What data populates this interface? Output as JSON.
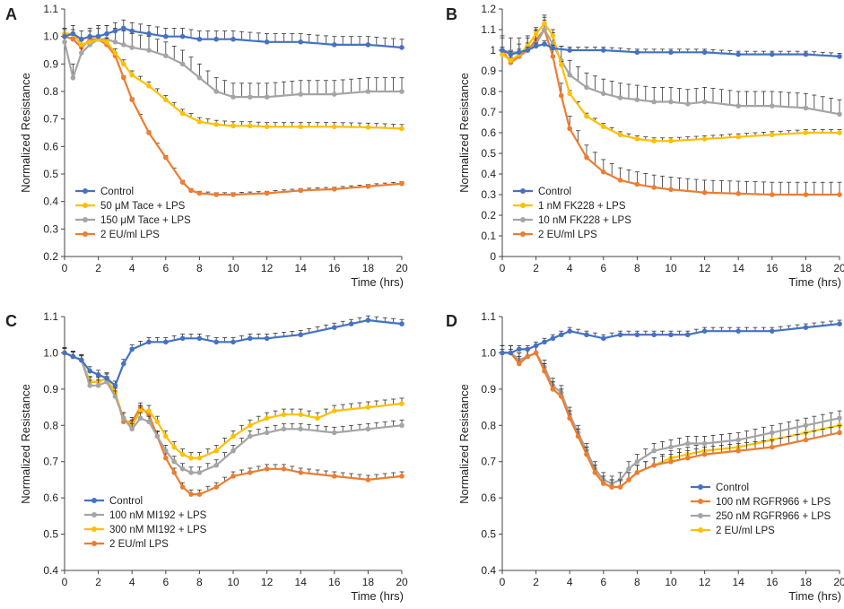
{
  "chart_data": [
    {
      "panel": "A",
      "type": "line",
      "title": "",
      "xlabel": "Time (hrs)",
      "ylabel": "Normalized Resistance",
      "xlim": [
        0,
        20
      ],
      "ylim": [
        0.2,
        1.1
      ],
      "xticks": [
        0,
        2,
        4,
        6,
        8,
        10,
        12,
        14,
        16,
        18,
        20
      ],
      "yticks": [
        0.2,
        0.3,
        0.4,
        0.5,
        0.6,
        0.7,
        0.8,
        0.9,
        1.0,
        1.1
      ],
      "ytick_labels": [
        "0.2",
        "0.3",
        "0.4",
        "0.5",
        "0.6",
        "0.7",
        "0.8",
        "0.9",
        "1.0",
        "1.1"
      ],
      "legend_position": "bottom-left",
      "series": [
        {
          "name": "Control",
          "color": "#4472C4",
          "x": [
            0,
            0.5,
            1,
            1.5,
            2,
            2.5,
            3,
            3.5,
            4,
            5,
            6,
            7,
            8,
            9,
            10,
            12,
            14,
            16,
            18,
            20
          ],
          "y": [
            1.0,
            1.01,
            0.99,
            1.0,
            1.0,
            1.01,
            1.02,
            1.03,
            1.02,
            1.01,
            1.0,
            1.0,
            0.99,
            0.99,
            0.99,
            0.98,
            0.98,
            0.97,
            0.97,
            0.96
          ],
          "err": 0.03
        },
        {
          "name": "50 μM Tace + LPS",
          "color": "#FFC000",
          "x": [
            0,
            0.5,
            1,
            1.5,
            2,
            2.5,
            3,
            3.5,
            4,
            5,
            6,
            7,
            8,
            9,
            10,
            11,
            12,
            14,
            16,
            18,
            20
          ],
          "y": [
            1.01,
            1.01,
            0.97,
            0.98,
            0.99,
            0.98,
            0.94,
            0.9,
            0.86,
            0.82,
            0.77,
            0.72,
            0.69,
            0.68,
            0.675,
            0.675,
            0.672,
            0.672,
            0.672,
            0.67,
            0.665
          ],
          "err": 0.015
        },
        {
          "name": "150 μM Tace + LPS",
          "color": "#A5A5A5",
          "x": [
            0,
            0.5,
            1,
            1.5,
            2,
            2.5,
            3,
            3.5,
            4,
            5,
            6,
            7,
            8,
            9,
            10,
            11,
            12,
            14,
            16,
            18,
            20
          ],
          "y": [
            0.98,
            0.85,
            0.94,
            0.97,
            0.99,
            0.99,
            0.98,
            0.97,
            0.96,
            0.95,
            0.93,
            0.9,
            0.85,
            0.8,
            0.78,
            0.78,
            0.78,
            0.79,
            0.79,
            0.8,
            0.8
          ],
          "err": 0.05
        },
        {
          "name": "2 EU/ml LPS",
          "color": "#ED7D31",
          "x": [
            0,
            0.5,
            1,
            1.5,
            2,
            2.5,
            3,
            3.5,
            4,
            5,
            6,
            7,
            7.5,
            8,
            9,
            10,
            12,
            14,
            16,
            18,
            20
          ],
          "y": [
            1.0,
            0.99,
            0.96,
            0.99,
            0.99,
            0.97,
            0.93,
            0.85,
            0.77,
            0.65,
            0.56,
            0.47,
            0.44,
            0.43,
            0.425,
            0.425,
            0.43,
            0.44,
            0.445,
            0.455,
            0.465
          ],
          "err": 0.007
        }
      ]
    },
    {
      "panel": "B",
      "type": "line",
      "title": "",
      "xlabel": "Time (hrs)",
      "ylabel": "Normalized Resistance",
      "xlim": [
        0,
        20
      ],
      "ylim": [
        0,
        1.2
      ],
      "xticks": [
        0,
        2,
        4,
        6,
        8,
        10,
        12,
        14,
        16,
        18,
        20
      ],
      "yticks": [
        0,
        0.1,
        0.2,
        0.3,
        0.4,
        0.5,
        0.6,
        0.7,
        0.8,
        0.9,
        1.0,
        1.1,
        1.2
      ],
      "ytick_labels": [
        "0",
        "0.1",
        "0.2",
        "0.3",
        "0.4",
        "0.5",
        "0.6",
        "0.7",
        "0.8",
        "0.9",
        "1",
        "1.1",
        "1.2"
      ],
      "legend_position": "bottom-left",
      "series": [
        {
          "name": "Control",
          "color": "#4472C4",
          "x": [
            0,
            0.5,
            1,
            1.5,
            2,
            2.5,
            3,
            4,
            6,
            8,
            10,
            12,
            14,
            16,
            18,
            20
          ],
          "y": [
            1.0,
            0.98,
            0.99,
            1.0,
            1.02,
            1.03,
            1.01,
            1.0,
            1.0,
            0.99,
            0.99,
            0.99,
            0.98,
            0.98,
            0.98,
            0.97
          ],
          "err": 0.015
        },
        {
          "name": "1 nM FK228 + LPS",
          "color": "#FFC000",
          "x": [
            0,
            0.5,
            1,
            1.5,
            2,
            2.5,
            3,
            3.5,
            4,
            5,
            6,
            7,
            8,
            9,
            10,
            12,
            14,
            16,
            18,
            20
          ],
          "y": [
            0.98,
            0.95,
            0.98,
            1.02,
            1.08,
            1.13,
            1.07,
            0.93,
            0.79,
            0.68,
            0.63,
            0.59,
            0.57,
            0.56,
            0.56,
            0.57,
            0.58,
            0.59,
            0.6,
            0.6
          ],
          "err": 0.015
        },
        {
          "name": "10 nM FK228 + LPS",
          "color": "#A5A5A5",
          "x": [
            0,
            0.5,
            1,
            1.5,
            2,
            2.5,
            3,
            3.5,
            4,
            5,
            6,
            7,
            8,
            9,
            10,
            11,
            12,
            14,
            16,
            18,
            20
          ],
          "y": [
            1.0,
            0.99,
            0.99,
            1.0,
            1.03,
            1.1,
            1.03,
            0.95,
            0.88,
            0.82,
            0.79,
            0.77,
            0.76,
            0.75,
            0.75,
            0.74,
            0.75,
            0.73,
            0.73,
            0.72,
            0.69
          ],
          "err": 0.07
        },
        {
          "name": "2 EU/ml LPS",
          "color": "#ED7D31",
          "x": [
            0,
            0.5,
            1,
            1.5,
            2,
            2.5,
            3,
            3.5,
            4,
            5,
            6,
            7,
            8,
            9,
            10,
            12,
            14,
            16,
            18,
            20
          ],
          "y": [
            1.0,
            0.94,
            0.97,
            1.0,
            1.05,
            1.1,
            0.97,
            0.78,
            0.62,
            0.48,
            0.41,
            0.37,
            0.35,
            0.335,
            0.325,
            0.31,
            0.305,
            0.3,
            0.3,
            0.3
          ],
          "err": 0.06
        }
      ]
    },
    {
      "panel": "C",
      "type": "line",
      "title": "",
      "xlabel": "Time (hrs)",
      "ylabel": "Normalized Resistance",
      "xlim": [
        0,
        20
      ],
      "ylim": [
        0.4,
        1.1
      ],
      "xticks": [
        0,
        2,
        4,
        6,
        8,
        10,
        12,
        14,
        16,
        18,
        20
      ],
      "yticks": [
        0.4,
        0.5,
        0.6,
        0.7,
        0.8,
        0.9,
        1.0,
        1.1
      ],
      "ytick_labels": [
        "0.4",
        "0.5",
        "0.6",
        "0.7",
        "0.8",
        "0.9",
        "1.0",
        "1.1"
      ],
      "legend_position": "bottom-left",
      "series": [
        {
          "name": "Control",
          "color": "#4472C4",
          "x": [
            0,
            0.5,
            1,
            1.5,
            2,
            2.5,
            3,
            3.5,
            4,
            5,
            6,
            7,
            8,
            9,
            10,
            11,
            12,
            14,
            16,
            17,
            18,
            20
          ],
          "y": [
            1.0,
            0.99,
            0.98,
            0.95,
            0.94,
            0.93,
            0.91,
            0.97,
            1.01,
            1.03,
            1.03,
            1.04,
            1.04,
            1.03,
            1.03,
            1.04,
            1.04,
            1.05,
            1.07,
            1.08,
            1.09,
            1.08
          ],
          "err": 0.012
        },
        {
          "name": "100 nM MI192 + LPS",
          "color": "#A5A5A5",
          "x": [
            0,
            0.5,
            1,
            1.5,
            2,
            2.5,
            3,
            3.5,
            4,
            4.5,
            5,
            5.5,
            6,
            6.5,
            7,
            7.5,
            8,
            9,
            10,
            11,
            12,
            13,
            14,
            16,
            18,
            20
          ],
          "y": [
            1.0,
            0.99,
            0.98,
            0.91,
            0.91,
            0.92,
            0.88,
            0.82,
            0.79,
            0.82,
            0.81,
            0.77,
            0.73,
            0.7,
            0.68,
            0.67,
            0.67,
            0.69,
            0.73,
            0.77,
            0.78,
            0.79,
            0.79,
            0.78,
            0.79,
            0.8
          ],
          "err": 0.015
        },
        {
          "name": "300 nM MI192 + LPS",
          "color": "#FFC000",
          "x": [
            0,
            0.5,
            1,
            1.5,
            2,
            2.5,
            3,
            3.5,
            4,
            4.5,
            5,
            5.5,
            6,
            6.5,
            7,
            7.5,
            8,
            9,
            10,
            11,
            12,
            13,
            14,
            15,
            16,
            18,
            20
          ],
          "y": [
            1.0,
            0.99,
            0.98,
            0.92,
            0.92,
            0.93,
            0.89,
            0.82,
            0.8,
            0.84,
            0.84,
            0.81,
            0.77,
            0.74,
            0.72,
            0.71,
            0.71,
            0.73,
            0.77,
            0.8,
            0.82,
            0.83,
            0.83,
            0.82,
            0.84,
            0.85,
            0.86
          ],
          "err": 0.015
        },
        {
          "name": "2 EU/ml LPS",
          "color": "#ED7D31",
          "x": [
            0,
            0.5,
            1,
            1.5,
            2,
            2.5,
            3,
            3.5,
            4,
            4.5,
            5,
            5.5,
            6,
            6.5,
            7,
            7.5,
            8,
            9,
            10,
            11,
            12,
            13,
            14,
            16,
            18,
            20
          ],
          "y": [
            1.0,
            0.99,
            0.98,
            0.92,
            0.92,
            0.93,
            0.89,
            0.81,
            0.81,
            0.85,
            0.83,
            0.77,
            0.71,
            0.67,
            0.63,
            0.61,
            0.61,
            0.63,
            0.66,
            0.67,
            0.68,
            0.68,
            0.67,
            0.66,
            0.65,
            0.66
          ],
          "err": 0.012
        }
      ]
    },
    {
      "panel": "D",
      "type": "line",
      "title": "",
      "xlabel": "Time (hrs)",
      "ylabel": "Normalized Resistance",
      "xlim": [
        0,
        20
      ],
      "ylim": [
        0.4,
        1.1
      ],
      "xticks": [
        0,
        2,
        4,
        6,
        8,
        10,
        12,
        14,
        16,
        18,
        20
      ],
      "yticks": [
        0.4,
        0.5,
        0.6,
        0.7,
        0.8,
        0.9,
        1.0,
        1.1
      ],
      "ytick_labels": [
        "0.4",
        "0.5",
        "0.6",
        "0.7",
        "0.8",
        "0.9",
        "1.0",
        "1.1"
      ],
      "legend_position": "bottom-right",
      "series": [
        {
          "name": "Control",
          "color": "#4472C4",
          "x": [
            0,
            0.5,
            1,
            1.5,
            2,
            2.5,
            3,
            3.5,
            4,
            5,
            6,
            7,
            8,
            9,
            10,
            11,
            12,
            14,
            16,
            18,
            20
          ],
          "y": [
            1.0,
            1.0,
            1.01,
            1.01,
            1.02,
            1.03,
            1.04,
            1.05,
            1.06,
            1.05,
            1.04,
            1.05,
            1.05,
            1.05,
            1.05,
            1.05,
            1.06,
            1.06,
            1.06,
            1.07,
            1.08
          ],
          "err": 0.01
        },
        {
          "name": "100 nM RGFR966 + LPS",
          "color": "#ED7D31",
          "x": [
            0,
            0.5,
            1,
            1.5,
            2,
            2.5,
            3,
            3.5,
            4,
            4.5,
            5,
            5.5,
            6,
            6.5,
            7,
            7.5,
            8,
            9,
            10,
            11,
            12,
            14,
            16,
            18,
            20
          ],
          "y": [
            1.0,
            1.0,
            0.97,
            0.99,
            1.0,
            0.95,
            0.9,
            0.88,
            0.82,
            0.77,
            0.72,
            0.67,
            0.64,
            0.63,
            0.63,
            0.65,
            0.67,
            0.69,
            0.7,
            0.71,
            0.72,
            0.73,
            0.74,
            0.76,
            0.78
          ],
          "err": 0.02
        },
        {
          "name": "250 nM RGFR966 + LPS",
          "color": "#A5A5A5",
          "x": [
            0,
            0.5,
            1,
            1.5,
            2,
            2.5,
            3,
            3.5,
            4,
            4.5,
            5,
            5.5,
            6,
            6.5,
            7,
            7.5,
            8,
            9,
            10,
            11,
            12,
            14,
            16,
            18,
            20
          ],
          "y": [
            1.0,
            1.0,
            0.98,
            0.99,
            1.0,
            0.96,
            0.91,
            0.89,
            0.83,
            0.78,
            0.73,
            0.68,
            0.65,
            0.64,
            0.65,
            0.68,
            0.7,
            0.73,
            0.74,
            0.75,
            0.75,
            0.76,
            0.78,
            0.8,
            0.82
          ],
          "err": 0.02
        },
        {
          "name": "2 EU/ml LPS",
          "color": "#FFC000",
          "x": [
            0,
            0.5,
            1,
            1.5,
            2,
            2.5,
            3,
            3.5,
            4,
            4.5,
            5,
            5.5,
            6,
            6.5,
            7,
            7.5,
            8,
            9,
            10,
            11,
            12,
            14,
            16,
            18,
            20
          ],
          "y": [
            1.0,
            1.0,
            0.98,
            0.99,
            1.0,
            0.95,
            0.9,
            0.88,
            0.82,
            0.77,
            0.72,
            0.67,
            0.64,
            0.63,
            0.63,
            0.65,
            0.67,
            0.69,
            0.71,
            0.72,
            0.73,
            0.74,
            0.76,
            0.78,
            0.8
          ],
          "err": 0.02
        }
      ]
    }
  ]
}
